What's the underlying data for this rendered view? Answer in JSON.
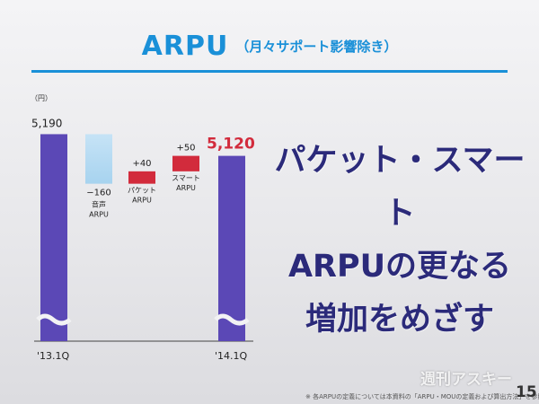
{
  "slide": {
    "title": "ARPU",
    "subtitle": "（月々サポート影響除き）",
    "message_lines": [
      "パケット・スマート",
      "ARPUの更なる",
      "増加をめざす"
    ],
    "watermark": "週刊アスキー",
    "footnote": "※ 各ARPUの定義については本資料の「ARPU・MOUの定義および算出方法」を参照",
    "page_number": "15"
  },
  "colors": {
    "total_bar": "#5b48b6",
    "decrease": "#a7d3ef",
    "increase": "#d22b3c",
    "highlight_value": "#d22b3c",
    "title": "#1a90d8"
  },
  "chart_data": {
    "type": "bar",
    "subtype": "waterfall",
    "unit_label": "（円）",
    "bars": [
      {
        "kind": "total",
        "value": 5190,
        "value_label": "5,190",
        "x_label": "'13.1Q",
        "name_lines": []
      },
      {
        "kind": "delta",
        "value": -160,
        "value_label": "−160",
        "name_lines": [
          "音声",
          "ARPU"
        ]
      },
      {
        "kind": "delta",
        "value": 40,
        "value_label": "+40",
        "name_lines": [
          "パケット",
          "ARPU"
        ]
      },
      {
        "kind": "delta",
        "value": 50,
        "value_label": "+50",
        "name_lines": [
          "スマート",
          "ARPU"
        ]
      },
      {
        "kind": "total",
        "value": 5120,
        "value_label": "5,120",
        "x_label": "'14.1Q",
        "name_lines": []
      }
    ],
    "axis_break": true
  }
}
